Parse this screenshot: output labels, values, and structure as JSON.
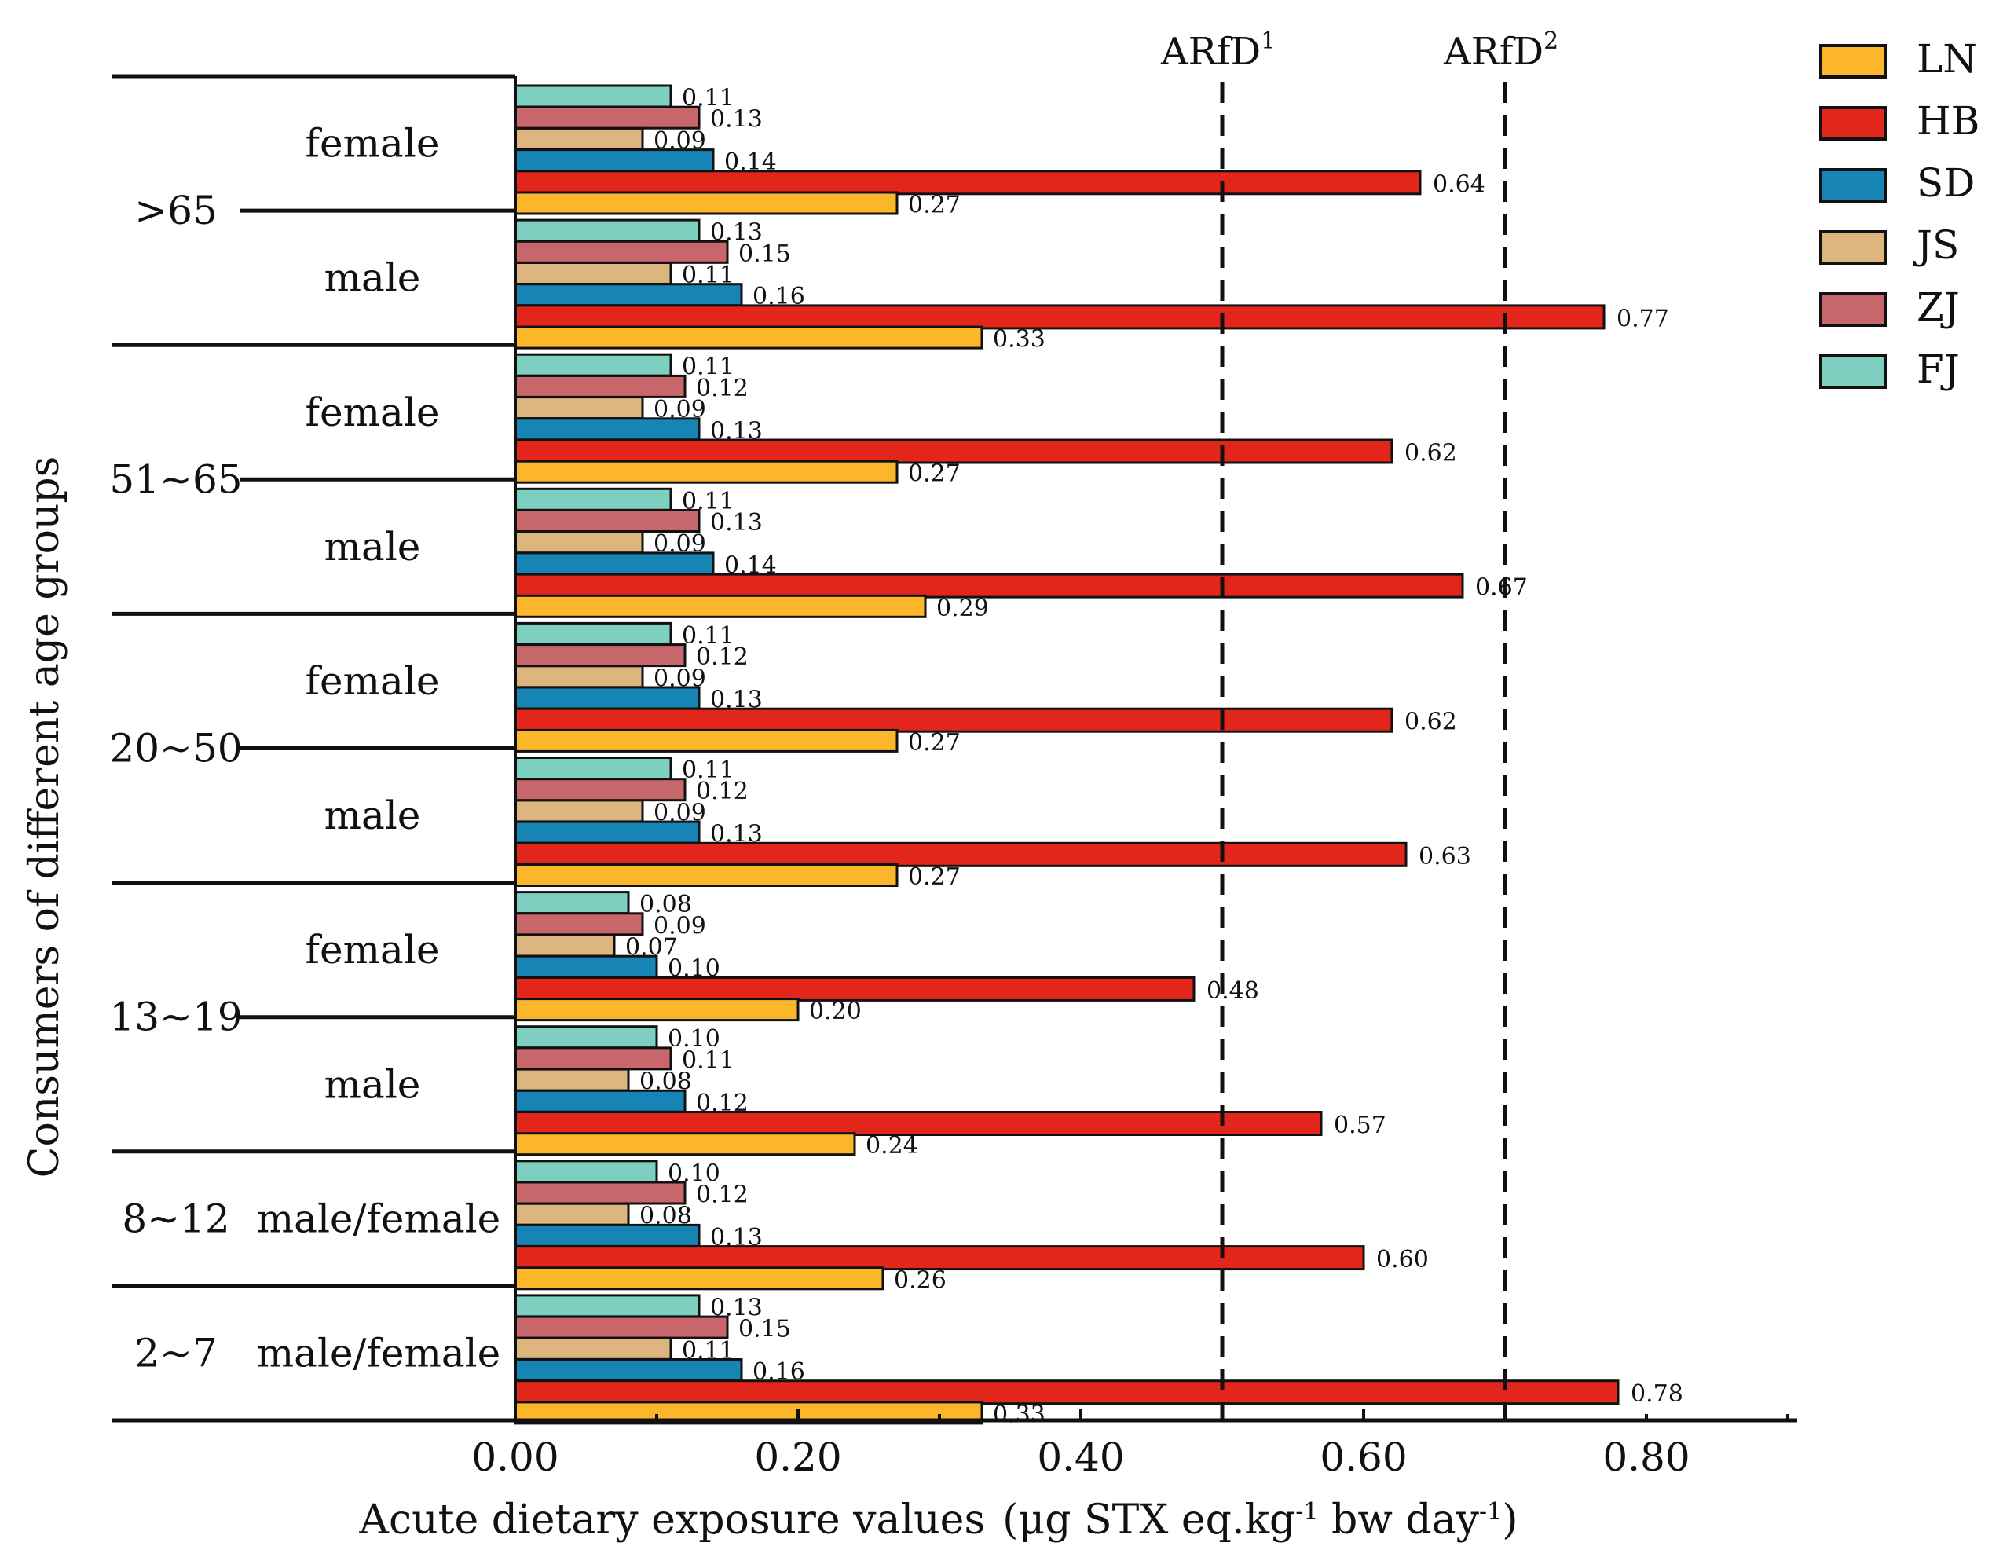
{
  "chart_data": {
    "type": "bar",
    "orientation": "horizontal",
    "title": "",
    "xlabel": "Acute dietary exposure values",
    "xlabel_units_prefix": "(μg STX eq.kg",
    "xlabel_units_sup1": "-1",
    "xlabel_units_mid": " bw day",
    "xlabel_units_sup2": "-1",
    "xlabel_units_suffix": ")",
    "ylabel": "Consumers of different age groups",
    "xlim": [
      0,
      0.9
    ],
    "xticks": [
      "0.00",
      "0.20",
      "0.40",
      "0.60",
      "0.80"
    ],
    "xtick_values": [
      0,
      0.2,
      0.4,
      0.6,
      0.8
    ],
    "legend_position": "top-right",
    "series": [
      {
        "name": "LN",
        "color": "#FBB62A"
      },
      {
        "name": "HB",
        "color": "#E3261C"
      },
      {
        "name": "SD",
        "color": "#1684B5"
      },
      {
        "name": "JS",
        "color": "#DDB57E"
      },
      {
        "name": "ZJ",
        "color": "#C8676B"
      },
      {
        "name": "FJ",
        "color": "#7DCFC0"
      }
    ],
    "groups": [
      {
        "age": ">65",
        "gender": "female",
        "values": {
          "LN": 0.27,
          "HB": 0.64,
          "SD": 0.14,
          "JS": 0.09,
          "ZJ": 0.13,
          "FJ": 0.11
        }
      },
      {
        "age": ">65",
        "gender": "male",
        "values": {
          "LN": 0.33,
          "HB": 0.77,
          "SD": 0.16,
          "JS": 0.11,
          "ZJ": 0.15,
          "FJ": 0.13
        }
      },
      {
        "age": "51~65",
        "gender": "female",
        "values": {
          "LN": 0.27,
          "HB": 0.62,
          "SD": 0.13,
          "JS": 0.09,
          "ZJ": 0.12,
          "FJ": 0.11
        }
      },
      {
        "age": "51~65",
        "gender": "male",
        "values": {
          "LN": 0.29,
          "HB": 0.67,
          "SD": 0.14,
          "JS": 0.09,
          "ZJ": 0.13,
          "FJ": 0.11
        }
      },
      {
        "age": "20~50",
        "gender": "female",
        "values": {
          "LN": 0.27,
          "HB": 0.62,
          "SD": 0.13,
          "JS": 0.09,
          "ZJ": 0.12,
          "FJ": 0.11
        }
      },
      {
        "age": "20~50",
        "gender": "male",
        "values": {
          "LN": 0.27,
          "HB": 0.63,
          "SD": 0.13,
          "JS": 0.09,
          "ZJ": 0.12,
          "FJ": 0.11
        }
      },
      {
        "age": "13~19",
        "gender": "female",
        "values": {
          "LN": 0.2,
          "HB": 0.48,
          "SD": 0.1,
          "JS": 0.07,
          "ZJ": 0.09,
          "FJ": 0.08
        }
      },
      {
        "age": "13~19",
        "gender": "male",
        "values": {
          "LN": 0.24,
          "HB": 0.57,
          "SD": 0.12,
          "JS": 0.08,
          "ZJ": 0.11,
          "FJ": 0.1
        }
      },
      {
        "age": "8~12",
        "gender": "male/female",
        "values": {
          "LN": 0.26,
          "HB": 0.6,
          "SD": 0.13,
          "JS": 0.08,
          "ZJ": 0.12,
          "FJ": 0.1
        }
      },
      {
        "age": "2~7",
        "gender": "male/female",
        "values": {
          "LN": 0.33,
          "HB": 0.78,
          "SD": 0.16,
          "JS": 0.11,
          "ZJ": 0.15,
          "FJ": 0.13
        }
      }
    ],
    "reference_lines": [
      {
        "label": "ARfD",
        "sup": "1",
        "value": 0.5
      },
      {
        "label": "ARfD",
        "sup": "2",
        "value": 0.7
      }
    ]
  }
}
